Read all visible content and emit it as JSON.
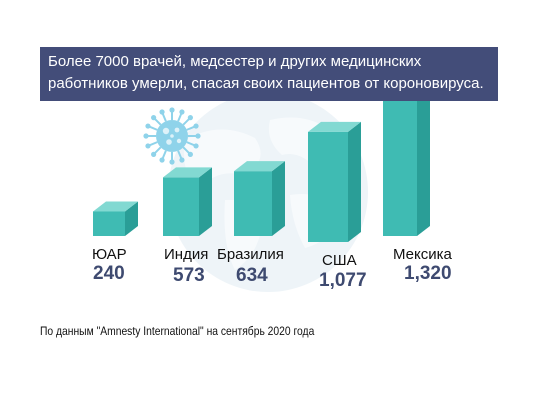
{
  "title": "Более 7000 врачей, медсестер и других медицинских работников умерли, спасая своих пациентов от короновируса.",
  "source_note": "По данным \"Amnesty International\" на сентябрь 2020 года",
  "chart_data": {
    "type": "bar",
    "title": "Более 7000 врачей, медсестер и других медицинских работников умерли, спасая своих пациентов от короновируса.",
    "categories": [
      "ЮАР",
      "Индия",
      "Бразилия",
      "США",
      "Мексика"
    ],
    "values": [
      240,
      573,
      634,
      1077,
      1320
    ],
    "value_labels": [
      "240",
      "573",
      "634",
      "1,077",
      "1,320"
    ],
    "xlabel": "",
    "ylabel": "",
    "grid": false,
    "legend": "none"
  },
  "colors": {
    "banner": "#434d79",
    "bar_front": "#3fbbb3",
    "bar_side": "#2a9e97",
    "bar_top": "#82d9d2",
    "value_text": "#3e4a70",
    "category_text": "#111111",
    "globe": "#eef4f8",
    "virus": "#8fd3ea"
  },
  "icons": [
    "globe-background-icon",
    "coronavirus-icon"
  ]
}
